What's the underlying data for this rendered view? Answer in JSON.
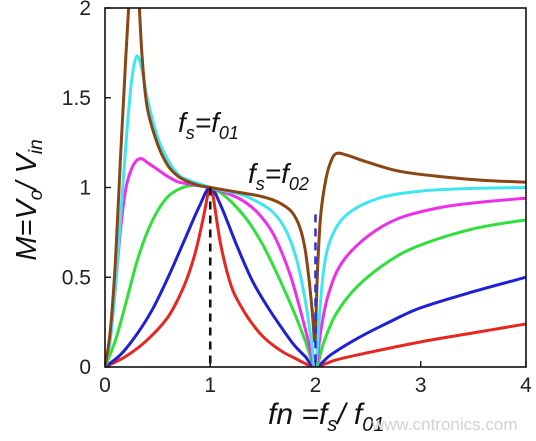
{
  "chart_data": {
    "type": "line",
    "title": "",
    "ylabel": {
      "parts": [
        "M=V",
        "o",
        "/ V",
        "in"
      ]
    },
    "xlabel": {
      "parts": [
        "fn =f",
        "s",
        "/ f",
        "01"
      ]
    },
    "xlim": [
      0,
      4
    ],
    "ylim": [
      0,
      2
    ],
    "x_ticks": [
      "0",
      "1",
      "2",
      "3",
      "4"
    ],
    "y_ticks": [
      "0",
      "0.5",
      "1",
      "1.5",
      "2"
    ],
    "grid": false,
    "legend": "none",
    "annotations": [
      {
        "parts": [
          "f",
          "s",
          "=f",
          "01"
        ]
      },
      {
        "parts": [
          "f",
          "s",
          "=f",
          "02"
        ]
      }
    ],
    "vertical_markers": [
      {
        "x": 1.0,
        "y_top": 1.0,
        "color": "#111111",
        "style": "dashed"
      },
      {
        "x": 2.0,
        "y_top": 0.85,
        "color": "#3333dd",
        "style": "dashed"
      }
    ],
    "series": [
      {
        "color": "#e8251f",
        "points": [
          [
            0,
            0
          ],
          [
            0.2,
            0.06
          ],
          [
            0.4,
            0.15
          ],
          [
            0.6,
            0.28
          ],
          [
            0.75,
            0.45
          ],
          [
            0.85,
            0.62
          ],
          [
            0.93,
            0.82
          ],
          [
            0.98,
            0.97
          ],
          [
            1.0,
            1.0
          ],
          [
            1.03,
            0.94
          ],
          [
            1.1,
            0.68
          ],
          [
            1.2,
            0.45
          ],
          [
            1.3,
            0.33
          ],
          [
            1.4,
            0.24
          ],
          [
            1.5,
            0.17
          ],
          [
            1.6,
            0.12
          ],
          [
            1.7,
            0.08
          ],
          [
            1.8,
            0.05
          ],
          [
            1.9,
            0.02
          ],
          [
            2.0,
            0.0
          ],
          [
            2.2,
            0.04
          ],
          [
            2.5,
            0.08
          ],
          [
            3.0,
            0.14
          ],
          [
            3.5,
            0.19
          ],
          [
            4.0,
            0.24
          ]
        ]
      },
      {
        "color": "#1f1fd6",
        "points": [
          [
            0,
            0
          ],
          [
            0.15,
            0.07
          ],
          [
            0.3,
            0.18
          ],
          [
            0.45,
            0.32
          ],
          [
            0.6,
            0.5
          ],
          [
            0.75,
            0.7
          ],
          [
            0.9,
            0.9
          ],
          [
            1.0,
            1.0
          ],
          [
            1.1,
            0.9
          ],
          [
            1.25,
            0.68
          ],
          [
            1.4,
            0.48
          ],
          [
            1.55,
            0.33
          ],
          [
            1.7,
            0.2
          ],
          [
            1.8,
            0.12
          ],
          [
            1.9,
            0.06
          ],
          [
            2.0,
            0.0
          ],
          [
            2.15,
            0.07
          ],
          [
            2.4,
            0.16
          ],
          [
            2.7,
            0.25
          ],
          [
            3.0,
            0.33
          ],
          [
            3.5,
            0.42
          ],
          [
            4.0,
            0.5
          ]
        ]
      },
      {
        "color": "#2fe03a",
        "points": [
          [
            0,
            0
          ],
          [
            0.1,
            0.15
          ],
          [
            0.2,
            0.36
          ],
          [
            0.3,
            0.58
          ],
          [
            0.4,
            0.75
          ],
          [
            0.5,
            0.87
          ],
          [
            0.6,
            0.95
          ],
          [
            0.7,
            0.99
          ],
          [
            0.8,
            1.01
          ],
          [
            0.9,
            1.01
          ],
          [
            1.0,
            1.0
          ],
          [
            1.1,
            0.97
          ],
          [
            1.2,
            0.92
          ],
          [
            1.35,
            0.82
          ],
          [
            1.5,
            0.68
          ],
          [
            1.65,
            0.5
          ],
          [
            1.8,
            0.3
          ],
          [
            1.9,
            0.15
          ],
          [
            2.0,
            0.0
          ],
          [
            2.08,
            0.14
          ],
          [
            2.2,
            0.3
          ],
          [
            2.4,
            0.45
          ],
          [
            2.7,
            0.59
          ],
          [
            3.0,
            0.68
          ],
          [
            3.5,
            0.77
          ],
          [
            4.0,
            0.82
          ]
        ]
      },
      {
        "color": "#ee2ee8",
        "points": [
          [
            0,
            0
          ],
          [
            0.05,
            0.16
          ],
          [
            0.1,
            0.45
          ],
          [
            0.15,
            0.78
          ],
          [
            0.2,
            1.0
          ],
          [
            0.25,
            1.1
          ],
          [
            0.3,
            1.15
          ],
          [
            0.35,
            1.16
          ],
          [
            0.4,
            1.14
          ],
          [
            0.5,
            1.1
          ],
          [
            0.6,
            1.06
          ],
          [
            0.7,
            1.03
          ],
          [
            0.8,
            1.02
          ],
          [
            0.9,
            1.01
          ],
          [
            1.0,
            1.0
          ],
          [
            1.15,
            0.97
          ],
          [
            1.3,
            0.93
          ],
          [
            1.45,
            0.86
          ],
          [
            1.6,
            0.74
          ],
          [
            1.75,
            0.53
          ],
          [
            1.85,
            0.33
          ],
          [
            1.93,
            0.15
          ],
          [
            2.0,
            0.0
          ],
          [
            2.05,
            0.2
          ],
          [
            2.12,
            0.4
          ],
          [
            2.25,
            0.58
          ],
          [
            2.5,
            0.73
          ],
          [
            2.8,
            0.83
          ],
          [
            3.2,
            0.89
          ],
          [
            3.6,
            0.92
          ],
          [
            4.0,
            0.94
          ]
        ]
      },
      {
        "color": "#3fe6f2",
        "points": [
          [
            0,
            0
          ],
          [
            0.05,
            0.15
          ],
          [
            0.1,
            0.45
          ],
          [
            0.15,
            0.85
          ],
          [
            0.2,
            1.25
          ],
          [
            0.25,
            1.58
          ],
          [
            0.3,
            1.73
          ],
          [
            0.35,
            1.66
          ],
          [
            0.4,
            1.5
          ],
          [
            0.5,
            1.28
          ],
          [
            0.6,
            1.15
          ],
          [
            0.7,
            1.07
          ],
          [
            0.8,
            1.04
          ],
          [
            0.9,
            1.02
          ],
          [
            1.0,
            1.0
          ],
          [
            1.15,
            0.98
          ],
          [
            1.3,
            0.96
          ],
          [
            1.45,
            0.92
          ],
          [
            1.6,
            0.86
          ],
          [
            1.72,
            0.76
          ],
          [
            1.82,
            0.6
          ],
          [
            1.9,
            0.38
          ],
          [
            1.96,
            0.15
          ],
          [
            2.0,
            0.0
          ],
          [
            2.04,
            0.3
          ],
          [
            2.08,
            0.55
          ],
          [
            2.15,
            0.72
          ],
          [
            2.3,
            0.85
          ],
          [
            2.6,
            0.94
          ],
          [
            3.0,
            0.98
          ],
          [
            3.5,
            0.995
          ],
          [
            4.0,
            1.0
          ]
        ]
      },
      {
        "color": "#8b4513",
        "points": [
          [
            0,
            0
          ],
          [
            0.05,
            0.2
          ],
          [
            0.1,
            0.6
          ],
          [
            0.15,
            1.2
          ],
          [
            0.2,
            1.75
          ],
          [
            0.25,
            2.2
          ],
          [
            0.3,
            2.25
          ],
          [
            0.35,
            1.75
          ],
          [
            0.4,
            1.45
          ],
          [
            0.5,
            1.24
          ],
          [
            0.6,
            1.12
          ],
          [
            0.7,
            1.06
          ],
          [
            0.8,
            1.03
          ],
          [
            0.9,
            1.01
          ],
          [
            1.0,
            1.0
          ],
          [
            1.15,
            0.985
          ],
          [
            1.3,
            0.97
          ],
          [
            1.45,
            0.955
          ],
          [
            1.6,
            0.93
          ],
          [
            1.7,
            0.9
          ],
          [
            1.78,
            0.86
          ],
          [
            1.85,
            0.78
          ],
          [
            1.9,
            0.66
          ],
          [
            1.94,
            0.48
          ],
          [
            1.97,
            0.3
          ],
          [
            1.99,
            0.15
          ],
          [
            2.0,
            0.2
          ],
          [
            2.02,
            0.55
          ],
          [
            2.05,
            0.85
          ],
          [
            2.1,
            1.05
          ],
          [
            2.15,
            1.15
          ],
          [
            2.2,
            1.19
          ],
          [
            2.3,
            1.18
          ],
          [
            2.5,
            1.14
          ],
          [
            2.8,
            1.09
          ],
          [
            3.2,
            1.06
          ],
          [
            3.6,
            1.04
          ],
          [
            4.0,
            1.03
          ]
        ]
      }
    ]
  },
  "watermark": "www.cntronics.com"
}
